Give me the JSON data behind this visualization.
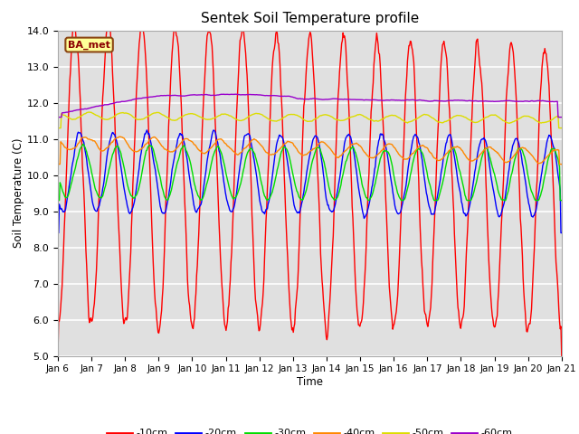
{
  "title": "Sentek Soil Temperature profile",
  "xlabel": "Time",
  "ylabel": "Soil Temperature (C)",
  "ylim": [
    5.0,
    14.0
  ],
  "yticks": [
    5.0,
    6.0,
    7.0,
    8.0,
    9.0,
    10.0,
    11.0,
    12.0,
    13.0,
    14.0
  ],
  "x_labels": [
    "Jan 6",
    "Jan 7",
    "Jan 8",
    "Jan 9",
    "Jan 10",
    "Jan 11",
    "Jan 12",
    "Jan 13",
    "Jan 14",
    "Jan 15",
    "Jan 16",
    "Jan 17",
    "Jan 18",
    "Jan 19",
    "Jan 20",
    "Jan 21"
  ],
  "colors": {
    "-10cm": "#ff0000",
    "-20cm": "#0000ff",
    "-30cm": "#00dd00",
    "-40cm": "#ff8800",
    "-50cm": "#dddd00",
    "-60cm": "#9900cc"
  },
  "legend_label": "BA_met",
  "plot_background": "#e0e0e0",
  "grid_color": "#ffffff",
  "n_points": 720
}
